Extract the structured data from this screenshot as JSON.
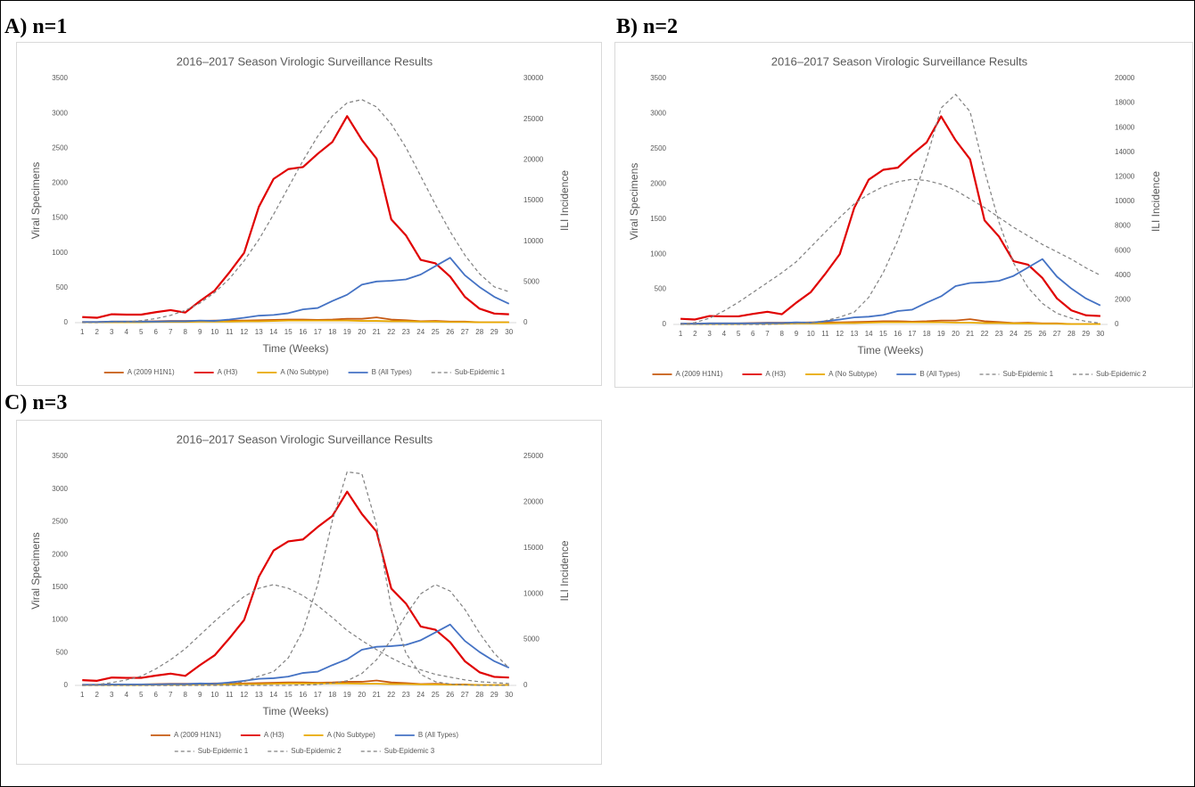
{
  "chart_data": [
    {
      "type": "line",
      "panel_label": "A) n=1",
      "title": "2016–2017 Season Virologic Surveillance Results",
      "x_label": "Time (Weeks)",
      "y_label": "Viral Specimens",
      "y2_label": "ILI Incidence",
      "categories": [
        1,
        2,
        3,
        4,
        5,
        6,
        7,
        8,
        9,
        10,
        11,
        12,
        13,
        14,
        15,
        16,
        17,
        18,
        19,
        20,
        21,
        22,
        23,
        24,
        25,
        26,
        27,
        28,
        29,
        30
      ],
      "ylim": [
        0,
        3500
      ],
      "yticks": [
        0,
        500,
        1000,
        1500,
        2000,
        2500,
        3000,
        3500
      ],
      "y2lim": [
        0,
        30000
      ],
      "y2ticks": [
        0,
        5000,
        10000,
        15000,
        20000,
        25000,
        30000
      ],
      "grid": false,
      "legend": "bottom",
      "series": [
        {
          "name": "A (2009 H1N1)",
          "color": "#c65911",
          "values": [
            10,
            10,
            15,
            15,
            15,
            20,
            25,
            25,
            25,
            30,
            30,
            30,
            35,
            40,
            45,
            45,
            40,
            45,
            55,
            55,
            75,
            45,
            35,
            20,
            25,
            15,
            15,
            5,
            5,
            5
          ]
        },
        {
          "name": "A (H3)",
          "color": "#e00000",
          "values": [
            80,
            70,
            120,
            115,
            115,
            150,
            180,
            145,
            310,
            460,
            720,
            1000,
            1660,
            2060,
            2200,
            2230,
            2420,
            2590,
            2960,
            2620,
            2350,
            1480,
            1250,
            900,
            850,
            660,
            370,
            200,
            130,
            120
          ]
        },
        {
          "name": "A (No Subtype)",
          "color": "#e8a800",
          "values": [
            5,
            5,
            5,
            5,
            5,
            10,
            10,
            10,
            15,
            15,
            15,
            20,
            20,
            25,
            30,
            30,
            30,
            30,
            30,
            25,
            25,
            20,
            20,
            15,
            15,
            10,
            10,
            5,
            5,
            5
          ]
        },
        {
          "name": "B (All Types)",
          "color": "#4472c4",
          "values": [
            10,
            10,
            15,
            15,
            15,
            15,
            20,
            20,
            30,
            25,
            45,
            70,
            100,
            110,
            135,
            190,
            210,
            310,
            400,
            545,
            590,
            600,
            620,
            690,
            810,
            930,
            680,
            510,
            370,
            270
          ]
        },
        {
          "name": "Sub-Epidemic 1",
          "color": "#808080",
          "dashed": true,
          "axis": "y2",
          "values": [
            0,
            0,
            50,
            100,
            250,
            500,
            900,
            1500,
            2400,
            3700,
            5400,
            7600,
            10200,
            13300,
            16600,
            19900,
            22900,
            25400,
            27000,
            27400,
            26500,
            24400,
            21500,
            18000,
            14500,
            11200,
            8300,
            6000,
            4400,
            3800
          ]
        }
      ]
    },
    {
      "type": "line",
      "panel_label": "B) n=2",
      "title": "2016–2017 Season Virologic Surveillance Results",
      "x_label": "Time (Weeks)",
      "y_label": "Viral Specimens",
      "y2_label": "ILI Incidence",
      "categories": [
        1,
        2,
        3,
        4,
        5,
        6,
        7,
        8,
        9,
        10,
        11,
        12,
        13,
        14,
        15,
        16,
        17,
        18,
        19,
        20,
        21,
        22,
        23,
        24,
        25,
        26,
        27,
        28,
        29,
        30
      ],
      "ylim": [
        0,
        3500
      ],
      "yticks": [
        0,
        500,
        1000,
        1500,
        2000,
        2500,
        3000,
        3500
      ],
      "y2lim": [
        0,
        20000
      ],
      "y2ticks": [
        0,
        2000,
        4000,
        6000,
        8000,
        10000,
        12000,
        14000,
        16000,
        18000,
        20000
      ],
      "grid": false,
      "legend": "bottom",
      "series": [
        {
          "name": "A (2009 H1N1)",
          "color": "#c65911",
          "values": [
            10,
            10,
            15,
            15,
            15,
            20,
            25,
            25,
            25,
            30,
            30,
            30,
            35,
            40,
            45,
            45,
            40,
            45,
            55,
            55,
            75,
            45,
            35,
            20,
            25,
            15,
            15,
            5,
            5,
            5
          ]
        },
        {
          "name": "A (H3)",
          "color": "#e00000",
          "values": [
            80,
            70,
            120,
            115,
            115,
            150,
            180,
            145,
            310,
            460,
            720,
            1000,
            1660,
            2060,
            2200,
            2230,
            2420,
            2590,
            2960,
            2620,
            2350,
            1480,
            1250,
            900,
            850,
            660,
            370,
            200,
            130,
            120
          ]
        },
        {
          "name": "A (No Subtype)",
          "color": "#e8a800",
          "values": [
            5,
            5,
            5,
            5,
            5,
            10,
            10,
            10,
            15,
            15,
            15,
            20,
            20,
            25,
            30,
            30,
            30,
            30,
            30,
            25,
            25,
            20,
            20,
            15,
            15,
            10,
            10,
            5,
            5,
            5
          ]
        },
        {
          "name": "B (All Types)",
          "color": "#4472c4",
          "values": [
            10,
            10,
            15,
            15,
            15,
            15,
            20,
            20,
            30,
            25,
            45,
            70,
            100,
            110,
            135,
            190,
            210,
            310,
            400,
            545,
            590,
            600,
            620,
            690,
            810,
            930,
            680,
            510,
            370,
            270
          ]
        },
        {
          "name": "Sub-Epidemic 1",
          "color": "#808080",
          "dashed": true,
          "axis": "y2",
          "values": [
            0,
            150,
            500,
            1100,
            1800,
            2600,
            3400,
            4200,
            5100,
            6300,
            7500,
            8700,
            9800,
            10600,
            11200,
            11600,
            11800,
            11700,
            11400,
            10900,
            10200,
            9500,
            8700,
            7900,
            7200,
            6500,
            5900,
            5300,
            4600,
            4000
          ]
        },
        {
          "name": "Sub-Epidemic 2",
          "color": "#808080",
          "dashed": true,
          "axis": "y2",
          "values": [
            0,
            0,
            0,
            0,
            0,
            0,
            0,
            50,
            100,
            150,
            300,
            600,
            1000,
            2200,
            4200,
            6800,
            10000,
            13500,
            17600,
            18700,
            17300,
            12500,
            8300,
            5000,
            3000,
            1700,
            900,
            500,
            250,
            100
          ]
        }
      ]
    },
    {
      "type": "line",
      "panel_label": "C) n=3",
      "title": "2016–2017 Season Virologic Surveillance Results",
      "x_label": "Time (Weeks)",
      "y_label": "Viral Specimens",
      "y2_label": "ILI Incidence",
      "categories": [
        1,
        2,
        3,
        4,
        5,
        6,
        7,
        8,
        9,
        10,
        11,
        12,
        13,
        14,
        15,
        16,
        17,
        18,
        19,
        20,
        21,
        22,
        23,
        24,
        25,
        26,
        27,
        28,
        29,
        30
      ],
      "ylim": [
        0,
        3500
      ],
      "yticks": [
        0,
        500,
        1000,
        1500,
        2000,
        2500,
        3000,
        3500
      ],
      "y2lim": [
        0,
        25000
      ],
      "y2ticks": [
        0,
        5000,
        10000,
        15000,
        20000,
        25000
      ],
      "grid": false,
      "legend": "bottom",
      "series": [
        {
          "name": "A (2009 H1N1)",
          "color": "#c65911",
          "values": [
            10,
            10,
            15,
            15,
            15,
            20,
            25,
            25,
            25,
            30,
            30,
            30,
            35,
            40,
            45,
            45,
            40,
            45,
            55,
            55,
            75,
            45,
            35,
            20,
            25,
            15,
            15,
            5,
            5,
            5
          ]
        },
        {
          "name": "A (H3)",
          "color": "#e00000",
          "values": [
            80,
            70,
            120,
            115,
            115,
            150,
            180,
            145,
            310,
            460,
            720,
            1000,
            1660,
            2060,
            2200,
            2230,
            2420,
            2590,
            2960,
            2620,
            2350,
            1480,
            1250,
            900,
            850,
            660,
            370,
            200,
            130,
            120
          ]
        },
        {
          "name": "A (No Subtype)",
          "color": "#e8a800",
          "values": [
            5,
            5,
            5,
            5,
            5,
            10,
            10,
            10,
            15,
            15,
            15,
            20,
            20,
            25,
            30,
            30,
            30,
            30,
            30,
            25,
            25,
            20,
            20,
            15,
            15,
            10,
            10,
            5,
            5,
            5
          ]
        },
        {
          "name": "B (All Types)",
          "color": "#4472c4",
          "values": [
            10,
            10,
            15,
            15,
            15,
            15,
            20,
            20,
            30,
            25,
            45,
            70,
            100,
            110,
            135,
            190,
            210,
            310,
            400,
            545,
            590,
            600,
            620,
            690,
            810,
            930,
            680,
            510,
            370,
            270
          ]
        },
        {
          "name": "Sub-Epidemic 1",
          "color": "#808080",
          "dashed": true,
          "axis": "y2",
          "values": [
            0,
            100,
            300,
            600,
            1000,
            1800,
            2800,
            4000,
            5500,
            7000,
            8400,
            9700,
            10600,
            11000,
            10600,
            9800,
            8700,
            7400,
            6000,
            4900,
            3900,
            3000,
            2200,
            1700,
            1200,
            900,
            600,
            400,
            300,
            200
          ]
        },
        {
          "name": "Sub-Epidemic 2",
          "color": "#808080",
          "dashed": true,
          "axis": "y2",
          "values": [
            0,
            0,
            0,
            0,
            0,
            0,
            0,
            0,
            50,
            100,
            200,
            400,
            1000,
            1500,
            3000,
            6000,
            11000,
            18000,
            23300,
            23100,
            17500,
            8500,
            3500,
            1200,
            400,
            150,
            50,
            0,
            0,
            0
          ]
        },
        {
          "name": "Sub-Epidemic 3",
          "color": "#808080",
          "dashed": true,
          "axis": "y2",
          "values": [
            0,
            0,
            0,
            0,
            0,
            0,
            0,
            0,
            0,
            0,
            0,
            0,
            0,
            0,
            0,
            50,
            100,
            250,
            500,
            1300,
            2800,
            5000,
            7700,
            10000,
            11000,
            10300,
            8300,
            5700,
            3500,
            1900
          ]
        }
      ]
    }
  ]
}
